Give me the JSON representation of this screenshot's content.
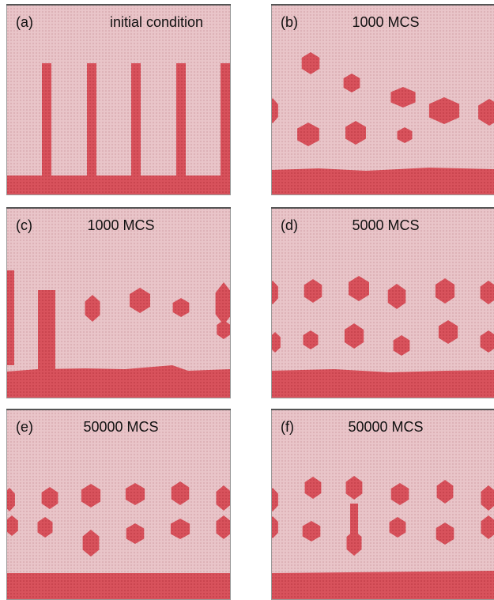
{
  "panels": [
    {
      "label": "(a)",
      "title": "initial condition"
    },
    {
      "label": "(b)",
      "title": "1000 MCS"
    },
    {
      "label": "(c)",
      "title": "1000 MCS"
    },
    {
      "label": "(d)",
      "title": "5000 MCS"
    },
    {
      "label": "(e)",
      "title": "50000 MCS"
    },
    {
      "label": "(f)",
      "title": "50000 MCS"
    }
  ]
}
